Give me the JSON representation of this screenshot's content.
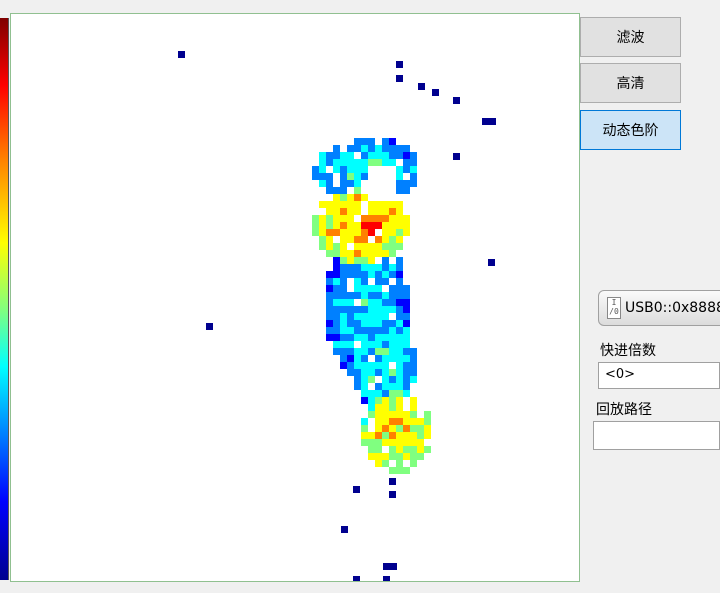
{
  "buttons": {
    "filter": "滤波",
    "hd": "高清",
    "dynamic_scale": "动态色阶"
  },
  "visa": {
    "resource": "USB0::0x8888"
  },
  "fast_forward": {
    "label": "快进倍数",
    "value": "<0>"
  },
  "playback": {
    "label": "回放路径",
    "value": ""
  },
  "colors": {
    "plot_background": "#ffffff",
    "active_button": "#cce4f7",
    "colormap": [
      "#00008f",
      "#0000ff",
      "#0080ff",
      "#00ffff",
      "#80ff80",
      "#ffff00",
      "#ff8000",
      "#ff0000",
      "#7f0000"
    ]
  }
}
